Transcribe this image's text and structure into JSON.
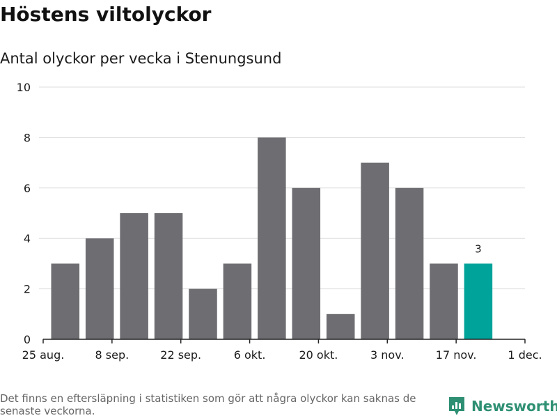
{
  "page": {
    "title": "Höstens viltolyckor",
    "subtitle": "Antal olyckor per vecka i Stenungsund",
    "footnote": "Det finns en eftersläpning i statistiken som gör att några olyckor kan saknas de senaste veckorna.",
    "brand": "Newsworthy",
    "brand_icon": "newsworthy-logo-icon",
    "colors": {
      "bar": "#6e6d72",
      "highlight": "#00a39a",
      "grid": "#dddddd",
      "brand": "#2e8f73"
    }
  },
  "chart_data": {
    "type": "bar",
    "title": "Höstens viltolyckor",
    "subtitle": "Antal olyckor per vecka i Stenungsund",
    "xlabel": "",
    "ylabel": "",
    "ylim": [
      0,
      10
    ],
    "yticks": [
      0,
      2,
      4,
      6,
      8,
      10
    ],
    "xlim": [
      "2024-08-25",
      "2024-12-01"
    ],
    "x_tick_dates": [
      "2024-08-25",
      "2024-09-08",
      "2024-09-22",
      "2024-10-06",
      "2024-10-20",
      "2024-11-03",
      "2024-11-17",
      "2024-12-01"
    ],
    "x_tick_labels": [
      "25 aug.",
      "8 sep.",
      "22 sep.",
      "6 okt.",
      "20 okt.",
      "3 nov.",
      "17 nov.",
      "1 dec."
    ],
    "categories": [
      "2024-09-02",
      "2024-09-09",
      "2024-09-16",
      "2024-09-23",
      "2024-09-30",
      "2024-10-07",
      "2024-10-14",
      "2024-10-21",
      "2024-10-28",
      "2024-11-04",
      "2024-11-11",
      "2024-11-18",
      "2024-11-25"
    ],
    "values": [
      3,
      4,
      5,
      5,
      2,
      3,
      8,
      6,
      1,
      7,
      6,
      3,
      3
    ],
    "highlight_index": 12,
    "data_labels": [
      {
        "index": 12,
        "text": "3"
      }
    ],
    "grid": true,
    "legend": "none"
  }
}
